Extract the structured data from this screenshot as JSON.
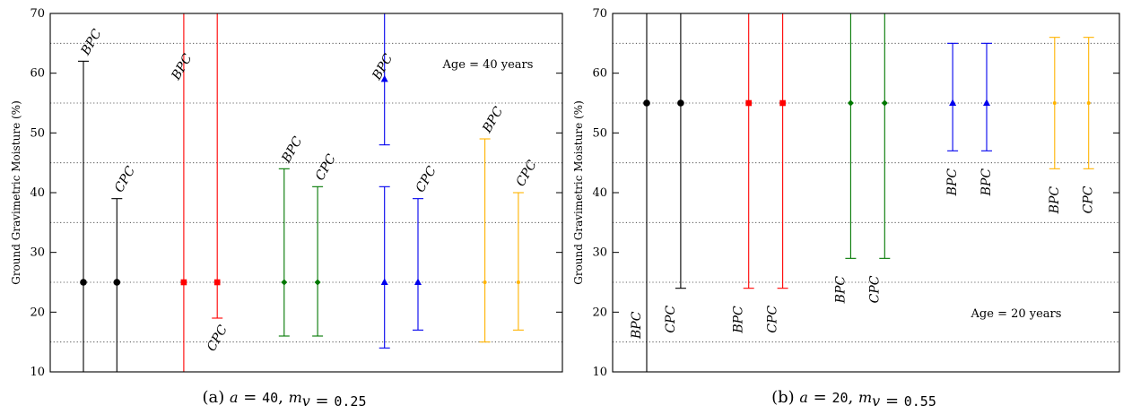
{
  "chart_data": [
    {
      "type": "errorbar",
      "ylabel": "Ground Gravimetric Moisture (%)",
      "ylim": [
        10,
        70
      ],
      "yticks": [
        10,
        20,
        30,
        40,
        50,
        60,
        70
      ],
      "grid": "horizontal-dotted",
      "annotation": "Age = 40 years",
      "caption": {
        "label": "(a)",
        "a": "40",
        "mv": "0.25"
      },
      "series": [
        {
          "color": "#000000",
          "marker": "circle",
          "points": [
            {
              "label": "BPC",
              "x": 1,
              "y": 25,
              "low": 10,
              "high": 62
            },
            {
              "label": "CPC",
              "x": 2,
              "y": 25,
              "low": 10,
              "high": 39
            }
          ]
        },
        {
          "color": "#ff0000",
          "marker": "square",
          "points": [
            {
              "label": "BPC",
              "x": 4,
              "y": 25,
              "low": 10,
              "high": 70
            },
            {
              "label": "CPC",
              "x": 5,
              "y": 25,
              "low": 19,
              "high": 70
            }
          ]
        },
        {
          "color": "#007700",
          "marker": "diamond",
          "points": [
            {
              "label": "BPC",
              "x": 7,
              "y": 25,
              "low": 16,
              "high": 44
            },
            {
              "label": "CPC",
              "x": 8,
              "y": 25,
              "low": 16,
              "high": 41
            }
          ]
        },
        {
          "color": "#0000ee",
          "marker": "triangle",
          "points": [
            {
              "label": "BPC",
              "x": 10,
              "y": 59,
              "low": 48,
              "high": 70
            },
            {
              "label": "",
              "x": 10,
              "y": 25,
              "low": 14,
              "high": 41
            },
            {
              "label": "CPC",
              "x": 11,
              "y": 25,
              "low": 17,
              "high": 39
            }
          ]
        },
        {
          "color": "#ffb300",
          "marker": "small",
          "points": [
            {
              "label": "BPC",
              "x": 13,
              "y": 25,
              "low": 15,
              "high": 49
            },
            {
              "label": "CPC",
              "x": 14,
              "y": 25,
              "low": 17,
              "high": 40
            }
          ]
        }
      ]
    },
    {
      "type": "errorbar",
      "ylabel": "Ground Gravimetric Moisture (%)",
      "ylim": [
        10,
        70
      ],
      "yticks": [
        10,
        20,
        30,
        40,
        50,
        60,
        70
      ],
      "grid": "horizontal-dotted",
      "annotation": "Age = 20 years",
      "caption": {
        "label": "(b)",
        "a": "20",
        "mv": "0.55"
      },
      "series": [
        {
          "color": "#000000",
          "marker": "circle",
          "points": [
            {
              "label": "BPC",
              "x": 1,
              "y": 55,
              "low": 10,
              "high": 70
            },
            {
              "label": "CPC",
              "x": 2,
              "y": 55,
              "low": 24,
              "high": 70
            }
          ]
        },
        {
          "color": "#ff0000",
          "marker": "square",
          "points": [
            {
              "label": "BPC",
              "x": 4,
              "y": 55,
              "low": 24,
              "high": 70
            },
            {
              "label": "CPC",
              "x": 5,
              "y": 55,
              "low": 24,
              "high": 70
            }
          ]
        },
        {
          "color": "#007700",
          "marker": "diamond",
          "points": [
            {
              "label": "BPC",
              "x": 7,
              "y": 55,
              "low": 29,
              "high": 70
            },
            {
              "label": "CPC",
              "x": 8,
              "y": 55,
              "low": 29,
              "high": 70
            }
          ]
        },
        {
          "color": "#0000ee",
          "marker": "triangle",
          "points": [
            {
              "label": "BPC",
              "x": 10,
              "y": 55,
              "low": 47,
              "high": 65
            },
            {
              "label": "BPC",
              "x": 11,
              "y": 55,
              "low": 47,
              "high": 65
            }
          ]
        },
        {
          "color": "#ffb300",
          "marker": "small",
          "points": [
            {
              "label": "BPC",
              "x": 13,
              "y": 55,
              "low": 44,
              "high": 66
            },
            {
              "label": "CPC",
              "x": 14,
              "y": 55,
              "low": 44,
              "high": 66
            }
          ]
        }
      ]
    }
  ]
}
